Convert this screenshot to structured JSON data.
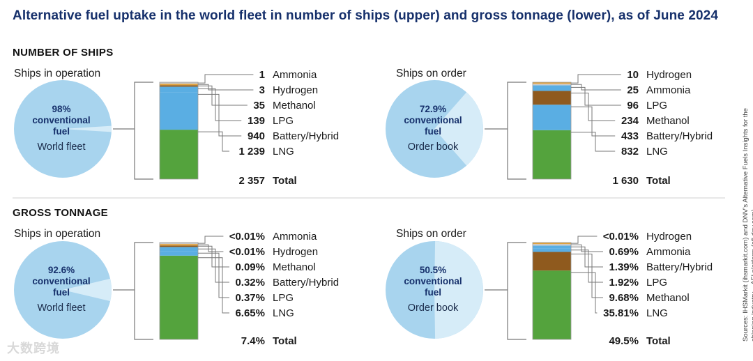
{
  "title": "Alternative fuel uptake in the world fleet in number of ships (upper) and gross tonnage (lower), as of June 2024",
  "sources": "Sources: IHSMarkit (ihsmarkit.com) and DNV's Alternative Fuels Insights for the shipping industry – AFI platform (afi.dnv.com)",
  "watermark": "大数跨境",
  "colors": {
    "title": "#16306b",
    "pie_main": "#a8d4ee",
    "pie_light": "#d6ecf8",
    "pie_text_bold": "#16306b",
    "LNG": "#54a33d",
    "Battery/Hybrid": "#5aaee3",
    "LPG": "#5aaee3",
    "Methanol": "#8f5a1e",
    "Hydrogen": "#e2a23c",
    "Ammonia": "#c9c9c9"
  },
  "sections": [
    {
      "heading": "NUMBER OF SHIPS"
    },
    {
      "heading": "GROSS TONNAGE"
    }
  ],
  "chart_data": [
    {
      "type": "bar",
      "section": "NUMBER OF SHIPS",
      "subtitle": "Ships in operation",
      "pie": {
        "percent_label": "98%",
        "label_lines": [
          "conventional",
          "fuel"
        ],
        "sublabel": "World fleet",
        "conventional_percent": 98
      },
      "stack_order_bottom_to_top": [
        "LNG",
        "Battery/Hybrid",
        "LPG",
        "Methanol",
        "Hydrogen",
        "Ammonia"
      ],
      "segments": [
        {
          "name": "Ammonia",
          "value": 1,
          "label": "1"
        },
        {
          "name": "Hydrogen",
          "value": 3,
          "label": "3"
        },
        {
          "name": "Methanol",
          "value": 35,
          "label": "35"
        },
        {
          "name": "LPG",
          "value": 139,
          "label": "139"
        },
        {
          "name": "Battery/Hybrid",
          "value": 940,
          "label": "940"
        },
        {
          "name": "LNG",
          "value": 1239,
          "label": "1 239"
        }
      ],
      "total": {
        "label": "2 357",
        "name": "Total",
        "value": 2357
      }
    },
    {
      "type": "bar",
      "section": "NUMBER OF SHIPS",
      "subtitle": "Ships on order",
      "pie": {
        "percent_label": "72.9%",
        "label_lines": [
          "conventional",
          "fuel"
        ],
        "sublabel": "Order book",
        "conventional_percent": 72.9
      },
      "stack_order_bottom_to_top": [
        "LNG",
        "Battery/Hybrid",
        "Methanol",
        "LPG",
        "Ammonia",
        "Hydrogen"
      ],
      "segments": [
        {
          "name": "Hydrogen",
          "value": 10,
          "label": "10"
        },
        {
          "name": "Ammonia",
          "value": 25,
          "label": "25"
        },
        {
          "name": "LPG",
          "value": 96,
          "label": "96"
        },
        {
          "name": "Methanol",
          "value": 234,
          "label": "234"
        },
        {
          "name": "Battery/Hybrid",
          "value": 433,
          "label": "433"
        },
        {
          "name": "LNG",
          "value": 832,
          "label": "832"
        }
      ],
      "total": {
        "label": "1 630",
        "name": "Total",
        "value": 1630
      }
    },
    {
      "type": "bar",
      "section": "GROSS TONNAGE",
      "subtitle": "Ships in operation",
      "pie": {
        "percent_label": "92.6%",
        "label_lines": [
          "conventional",
          "fuel"
        ],
        "sublabel": "World fleet",
        "conventional_percent": 92.6
      },
      "stack_order_bottom_to_top": [
        "LNG",
        "LPG",
        "Battery/Hybrid",
        "Methanol",
        "Hydrogen",
        "Ammonia"
      ],
      "segments": [
        {
          "name": "Ammonia",
          "value": 0.005,
          "label": "<0.01%"
        },
        {
          "name": "Hydrogen",
          "value": 0.005,
          "label": "<0.01%"
        },
        {
          "name": "Methanol",
          "value": 0.09,
          "label": "0.09%"
        },
        {
          "name": "Battery/Hybrid",
          "value": 0.32,
          "label": "0.32%"
        },
        {
          "name": "LPG",
          "value": 0.37,
          "label": "0.37%"
        },
        {
          "name": "LNG",
          "value": 6.65,
          "label": "6.65%"
        }
      ],
      "total": {
        "label": "7.4%",
        "name": "Total",
        "value": 7.4
      }
    },
    {
      "type": "bar",
      "section": "GROSS TONNAGE",
      "subtitle": "Ships on order",
      "pie": {
        "percent_label": "50.5%",
        "label_lines": [
          "conventional",
          "fuel"
        ],
        "sublabel": "Order book",
        "conventional_percent": 50.5
      },
      "stack_order_bottom_to_top": [
        "LNG",
        "Methanol",
        "LPG",
        "Battery/Hybrid",
        "Ammonia",
        "Hydrogen"
      ],
      "segments": [
        {
          "name": "Hydrogen",
          "value": 0.005,
          "label": "<0.01%"
        },
        {
          "name": "Ammonia",
          "value": 0.69,
          "label": "0.69%"
        },
        {
          "name": "Battery/Hybrid",
          "value": 1.39,
          "label": "1.39%"
        },
        {
          "name": "LPG",
          "value": 1.92,
          "label": "1.92%"
        },
        {
          "name": "Methanol",
          "value": 9.68,
          "label": "9.68%"
        },
        {
          "name": "LNG",
          "value": 35.81,
          "label": "35.81%"
        }
      ],
      "total": {
        "label": "49.5%",
        "name": "Total",
        "value": 49.5
      }
    }
  ]
}
